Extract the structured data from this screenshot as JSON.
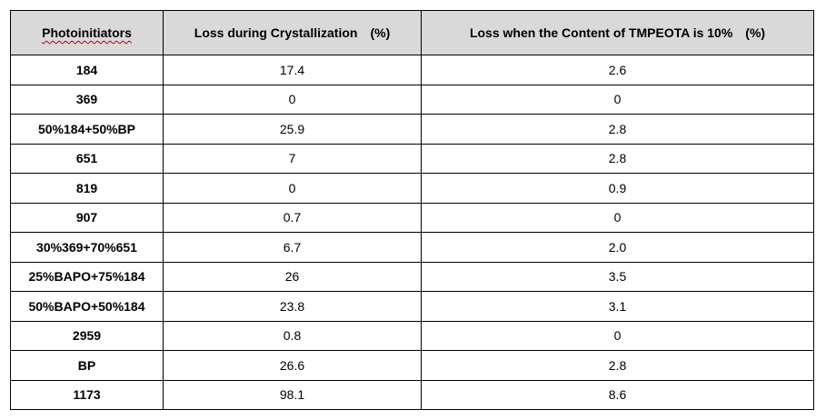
{
  "table": {
    "headers": {
      "col1": "Photoinitiators",
      "col2": "Loss during Crystallization　(%)",
      "col3": "Loss when the Content of TMPEOTA is 10%　(%)"
    },
    "rows": [
      {
        "name": "184",
        "crystallization_loss": "17.4",
        "tmpeota_loss": "2.6"
      },
      {
        "name": "369",
        "crystallization_loss": "0",
        "tmpeota_loss": "0"
      },
      {
        "name": "50%184+50%BP",
        "crystallization_loss": "25.9",
        "tmpeota_loss": "2.8"
      },
      {
        "name": "651",
        "crystallization_loss": "7",
        "tmpeota_loss": "2.8"
      },
      {
        "name": "819",
        "crystallization_loss": "0",
        "tmpeota_loss": "0.9"
      },
      {
        "name": "907",
        "crystallization_loss": "0.7",
        "tmpeota_loss": "0"
      },
      {
        "name": "30%369+70%651",
        "crystallization_loss": "6.7",
        "tmpeota_loss": "2.0"
      },
      {
        "name": "25%BAPO+75%184",
        "crystallization_loss": "26",
        "tmpeota_loss": "3.5"
      },
      {
        "name": "50%BAPO+50%184",
        "crystallization_loss": "23.8",
        "tmpeota_loss": "3.1"
      },
      {
        "name": "2959",
        "crystallization_loss": "0.8",
        "tmpeota_loss": "0"
      },
      {
        "name": "BP",
        "crystallization_loss": "26.6",
        "tmpeota_loss": "2.8"
      },
      {
        "name": "1173",
        "crystallization_loss": "98.1",
        "tmpeota_loss": "8.6"
      }
    ]
  }
}
